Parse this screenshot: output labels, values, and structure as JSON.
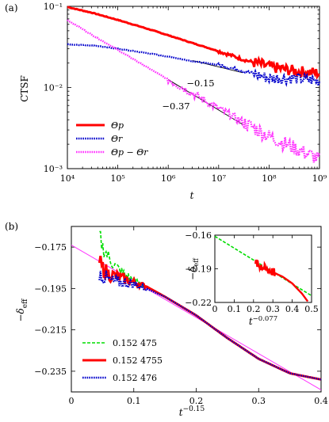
{
  "chart_data": [
    {
      "panel": "(a)",
      "type": "line",
      "xscale": "log",
      "yscale": "log",
      "xlim": [
        10000,
        1000000000
      ],
      "ylim": [
        0.001,
        0.1
      ],
      "xlabel": "t",
      "ylabel": "CTSF",
      "xticks": [
        "10⁴",
        "10⁵",
        "10⁶",
        "10⁷",
        "10⁸",
        "10⁹"
      ],
      "yticks": [
        "10⁻¹",
        "10⁻²",
        "10⁻³"
      ],
      "legend_position": "bottom-left",
      "colors": {
        "p": "#ff0000",
        "r": "#0000cc",
        "diff": "#ff33ff"
      },
      "series": [
        {
          "key": "p",
          "name": "Θp",
          "style": "solid-thick",
          "x": [
            10000,
            31600,
            100000,
            316000,
            1000000,
            3160000,
            10000000,
            31600000,
            100000000,
            316000000,
            1000000000
          ],
          "y": [
            0.098,
            0.083,
            0.068,
            0.055,
            0.044,
            0.035,
            0.028,
            0.022,
            0.018,
            0.016,
            0.015
          ]
        },
        {
          "key": "r",
          "name": "Θr",
          "style": "dotted",
          "x": [
            10000,
            31600,
            100000,
            316000,
            1000000,
            3160000,
            10000000,
            31600000,
            100000000,
            316000000,
            1000000000
          ],
          "y": [
            0.034,
            0.033,
            0.03,
            0.027,
            0.024,
            0.021,
            0.019,
            0.016,
            0.013,
            0.013,
            0.012
          ]
        },
        {
          "key": "diff",
          "name": "Θp − Θr",
          "style": "dotted",
          "x": [
            10000,
            31600,
            100000,
            316000,
            1000000,
            3160000,
            10000000,
            31600000,
            100000000,
            316000000,
            1000000000
          ],
          "y": [
            0.068,
            0.044,
            0.029,
            0.019,
            0.0125,
            0.0083,
            0.0055,
            0.0037,
            0.0025,
            0.0018,
            0.0013
          ]
        }
      ],
      "annotations": [
        {
          "text": "−0.15",
          "slope": -0.15,
          "x": [
            3000000,
            30000000
          ],
          "y": [
            0.0215,
            0.0152
          ]
        },
        {
          "text": "−0.37",
          "slope": -0.37,
          "x": [
            1000000,
            30000000
          ],
          "y": [
            0.0125,
            0.0035
          ]
        }
      ]
    },
    {
      "panel": "(b)",
      "type": "line",
      "xlim": [
        0,
        0.4
      ],
      "ylim": [
        -0.245,
        -0.165
      ],
      "xlabel": "t⁻⁰·¹⁵",
      "xlabel_base": "t",
      "xlabel_exp": "−0.15",
      "ylabel_base": "−δ",
      "ylabel_sub": "eff",
      "xticks": [
        0,
        0.1,
        0.2,
        0.3,
        0.4
      ],
      "xtick_labels": [
        "0",
        "0.1",
        "0.2",
        "0.3",
        "0.4"
      ],
      "yticks": [
        -0.175,
        -0.195,
        -0.215,
        -0.235
      ],
      "ytick_labels": [
        "−0.175",
        "−0.195",
        "−0.215",
        "−0.235"
      ],
      "legend_position": "bottom-left",
      "series": [
        {
          "name": "0.152 475",
          "color": "#00dd00",
          "style": "dashed",
          "x": [
            0.045,
            0.05,
            0.06,
            0.07,
            0.08,
            0.1,
            0.12,
            0.15,
            0.2,
            0.25,
            0.3,
            0.35,
            0.4
          ],
          "y": [
            -0.169,
            -0.175,
            -0.18,
            -0.184,
            -0.187,
            -0.191,
            -0.194,
            -0.199,
            -0.208,
            -0.219,
            -0.229,
            -0.236,
            -0.239
          ]
        },
        {
          "name": "0.152 4755",
          "color": "#ff0000",
          "style": "solid-thick",
          "x": [
            0.045,
            0.05,
            0.06,
            0.07,
            0.08,
            0.1,
            0.12,
            0.15,
            0.2,
            0.25,
            0.3,
            0.35,
            0.4
          ],
          "y": [
            -0.182,
            -0.185,
            -0.188,
            -0.189,
            -0.19,
            -0.192,
            -0.194,
            -0.199,
            -0.208,
            -0.219,
            -0.229,
            -0.236,
            -0.239
          ]
        },
        {
          "name": "0.152 476",
          "color": "#0000cc",
          "style": "dotted",
          "x": [
            0.045,
            0.05,
            0.06,
            0.07,
            0.08,
            0.1,
            0.12,
            0.15,
            0.2,
            0.25,
            0.3,
            0.35,
            0.4
          ],
          "y": [
            -0.187,
            -0.189,
            -0.191,
            -0.192,
            -0.192,
            -0.193,
            -0.195,
            -0.199,
            -0.208,
            -0.219,
            -0.229,
            -0.236,
            -0.239
          ]
        }
      ],
      "reference_line": {
        "color": "#ff33ff",
        "x": [
          0,
          0.4
        ],
        "y": [
          -0.174,
          -0.244
        ]
      },
      "inset": {
        "xlim": [
          0,
          0.5
        ],
        "ylim": [
          -0.22,
          -0.16
        ],
        "xlabel_base": "t",
        "xlabel_exp": "−0.077",
        "ylabel_base": "−δ",
        "ylabel_sub": "eff",
        "xticks": [
          0,
          0.1,
          0.2,
          0.3,
          0.4,
          0.5
        ],
        "xtick_labels": [
          "0",
          "0.1",
          "0.2",
          "0.3",
          "0.4",
          "0.5"
        ],
        "yticks": [
          -0.16,
          -0.19,
          -0.22
        ],
        "ytick_labels": [
          "−0.16",
          "−0.19",
          "−0.22"
        ],
        "fit_line": {
          "color": "#00dd00",
          "style": "dashed",
          "x": [
            0,
            0.5
          ],
          "y": [
            -0.161,
            -0.214
          ]
        },
        "data": {
          "color": "#ff0000",
          "x": [
            0.21,
            0.25,
            0.3,
            0.35,
            0.4,
            0.45,
            0.48
          ],
          "y": [
            -0.185,
            -0.189,
            -0.193,
            -0.197,
            -0.203,
            -0.212,
            -0.219
          ]
        }
      }
    }
  ]
}
